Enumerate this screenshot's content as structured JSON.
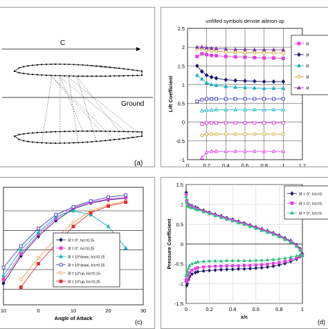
{
  "panel_a": {
    "chord_label": "C",
    "ground_label": "Ground",
    "tag": "(a)"
  },
  "chart_data": [
    {
      "id": "b",
      "type": "line",
      "title": "unfilled symbols denote aileron up",
      "xlabel": "h/c",
      "ylabel": "Lift Coefficient",
      "xlim": [
        0,
        1.2
      ],
      "ylim": [
        -1,
        2.5
      ],
      "xticks": [
        "0",
        "0.2",
        "0.4",
        "0.6",
        "0.8",
        "1",
        "1.2"
      ],
      "yticks": [
        "-1",
        "-0.5",
        "0",
        "0.5",
        "1",
        "1.5",
        "2",
        "2.5"
      ],
      "grid": true,
      "legend_position": "right",
      "tag": "(b)",
      "series": [
        {
          "name": "δf",
          "color": "#e040e0",
          "marker": "square",
          "filled": true,
          "x": [
            0.1,
            0.15,
            0.2,
            0.25,
            0.3,
            0.4,
            0.5,
            0.6,
            0.7,
            0.8,
            0.9,
            1.0
          ],
          "y": [
            1.75,
            1.82,
            1.8,
            1.78,
            1.77,
            1.75,
            1.74,
            1.73,
            1.72,
            1.71,
            1.71,
            1.7
          ]
        },
        {
          "name": "δf",
          "color": "#1a1a70",
          "marker": "diamond",
          "filled": true,
          "x": [
            0.1,
            0.15,
            0.2,
            0.25,
            0.3,
            0.4,
            0.5,
            0.6,
            0.7,
            0.8,
            0.9,
            1.0
          ],
          "y": [
            1.5,
            1.35,
            1.25,
            1.2,
            1.17,
            1.13,
            1.11,
            1.1,
            1.09,
            1.08,
            1.08,
            1.08
          ]
        },
        {
          "name": "δf",
          "color": "#1ab0c0",
          "marker": "triangle",
          "filled": true,
          "x": [
            0.1,
            0.15,
            0.2,
            0.25,
            0.3,
            0.4,
            0.5,
            0.6,
            0.7,
            0.8,
            0.9,
            1.0
          ],
          "y": [
            1.25,
            1.15,
            1.05,
            1.0,
            0.98,
            0.95,
            0.93,
            0.92,
            0.91,
            0.9,
            0.9,
            0.9
          ]
        },
        {
          "name": "δf",
          "color": "#d0a020",
          "marker": "circle",
          "filled": false,
          "x": [
            0.1,
            0.15,
            0.2,
            0.25,
            0.3,
            0.4,
            0.5,
            0.6,
            0.7,
            0.8,
            0.9,
            1.0
          ],
          "y": [
            1.95,
            1.95,
            1.92,
            1.9,
            1.89,
            1.87,
            1.86,
            1.85,
            1.85,
            1.85,
            1.84,
            1.84
          ]
        },
        {
          "name": "δf",
          "color": "#8040a0",
          "marker": "triangle",
          "filled": true,
          "x": [
            0.1,
            0.15,
            0.2,
            0.25,
            0.3,
            0.4,
            0.5,
            0.6,
            0.7,
            0.8,
            0.9,
            1.0
          ],
          "y": [
            2.0,
            2.0,
            1.98,
            1.97,
            1.96,
            1.95,
            1.94,
            1.94,
            1.93,
            1.93,
            1.93,
            1.93
          ]
        },
        {
          "name": "",
          "color": "#4040c0",
          "marker": "square",
          "filled": false,
          "x": [
            0.1,
            0.15,
            0.2,
            0.25,
            0.3,
            0.4,
            0.5,
            0.6,
            0.7,
            0.8,
            0.9,
            1.0
          ],
          "y": [
            0.55,
            0.6,
            0.62,
            0.62,
            0.62,
            0.62,
            0.62,
            0.62,
            0.62,
            0.62,
            0.62,
            0.62
          ]
        },
        {
          "name": "",
          "color": "#1ab0c0",
          "marker": "triangle",
          "filled": false,
          "x": [
            0.15,
            0.2,
            0.25,
            0.3,
            0.4,
            0.5,
            0.6,
            0.7,
            0.8,
            0.9,
            1.0
          ],
          "y": [
            0.3,
            0.32,
            0.32,
            0.33,
            0.33,
            0.33,
            0.33,
            0.33,
            0.33,
            0.33,
            0.33
          ]
        },
        {
          "name": "",
          "color": "#e040e0",
          "marker": "square",
          "filled": false,
          "x": [
            0.15,
            0.2,
            0.25,
            0.3,
            0.4,
            0.5,
            0.6,
            0.7,
            0.8,
            0.9,
            1.0
          ],
          "y": [
            -0.05,
            -0.02,
            -0.02,
            -0.02,
            -0.02,
            -0.02,
            -0.02,
            -0.02,
            -0.02,
            -0.02,
            -0.02
          ]
        },
        {
          "name": "",
          "color": "#d0a020",
          "marker": "circle",
          "filled": false,
          "x": [
            0.15,
            0.2,
            0.25,
            0.3,
            0.4,
            0.5,
            0.6,
            0.7,
            0.8,
            0.9,
            1.0
          ],
          "y": [
            -0.35,
            -0.32,
            -0.32,
            -0.32,
            -0.32,
            -0.32,
            -0.32,
            -0.32,
            -0.32,
            -0.32,
            -0.32
          ]
        },
        {
          "name": "",
          "color": "#e040e0",
          "marker": "triangle",
          "filled": false,
          "x": [
            0.15,
            0.2,
            0.25,
            0.3,
            0.4,
            0.5,
            0.6,
            0.7,
            0.8,
            0.9,
            1.0
          ],
          "y": [
            -0.95,
            -0.8,
            -0.78,
            -0.78,
            -0.78,
            -0.78,
            -0.78,
            -0.78,
            -0.78,
            -0.78,
            -0.78
          ]
        }
      ]
    },
    {
      "id": "c",
      "type": "line",
      "xlabel": "Angle of Attack",
      "ylabel": "",
      "xlim": [
        -10,
        30
      ],
      "xticks": [
        "10",
        "0",
        "10",
        "20",
        "30"
      ],
      "ylim": [
        -0.4,
        2.6
      ],
      "grid": true,
      "legend_position": "bottom-right",
      "tag": "(c)",
      "series": [
        {
          "name": "δf = 0°, h/c=0.15",
          "color": "#1a1a70",
          "marker": "diamond",
          "filled": true,
          "x": [
            -10,
            -5,
            0,
            5,
            10,
            15,
            20,
            25
          ],
          "y": [
            0.15,
            0.85,
            1.35,
            1.75,
            2.05,
            2.2,
            2.28,
            2.32
          ]
        },
        {
          "name": "δf = 0°, h/c=0.25",
          "color": "#e040e0",
          "marker": "square",
          "filled": true,
          "x": [
            -10,
            -5,
            0,
            5,
            10,
            15,
            20,
            25
          ],
          "y": [
            0.25,
            0.9,
            1.4,
            1.8,
            2.08,
            2.22,
            2.3,
            2.34
          ]
        },
        {
          "name": "δf = 10°down, h/c=0.15",
          "color": "#1ab0c0",
          "marker": "triangle",
          "filled": true,
          "x": [
            -10,
            -5,
            0,
            5,
            10,
            15,
            20,
            25
          ],
          "y": [
            0.35,
            1.0,
            1.45,
            1.85,
            2.0,
            1.9,
            1.6,
            1.05
          ]
        },
        {
          "name": "δf = 10°down, h/c=0.25",
          "color": "#4040c0",
          "marker": "square",
          "filled": false,
          "x": [
            -10,
            -5,
            0,
            5,
            10,
            15,
            20,
            25
          ],
          "y": [
            0.55,
            1.1,
            1.55,
            1.9,
            2.1,
            2.25,
            2.35,
            2.4
          ]
        },
        {
          "name": "δf = 10°up, h/c=0.15",
          "color": "#f0a040",
          "marker": "circle",
          "filled": false,
          "x": [
            -5,
            0,
            5,
            10,
            15,
            20,
            25
          ],
          "y": [
            0.25,
            0.8,
            1.3,
            1.7,
            2.0,
            2.15,
            2.25
          ]
        },
        {
          "name": "δf = 10°up, h/c=0.25",
          "color": "#e03030",
          "marker": "square",
          "filled": true,
          "x": [
            -5,
            0,
            5,
            10,
            15,
            20,
            25
          ],
          "y": [
            0.05,
            0.65,
            1.15,
            1.6,
            1.95,
            2.12,
            2.22
          ]
        }
      ]
    },
    {
      "id": "d",
      "type": "line",
      "xlabel": "x/c",
      "ylabel": "Pressure Coefficient",
      "xlim": [
        0,
        1
      ],
      "ylim": [
        -1.5,
        1.5
      ],
      "xticks": [
        "0",
        "0.2",
        "0.4",
        "0.6",
        "0.8",
        "1"
      ],
      "yticks": [
        "-1.5",
        "-1",
        "-0.5",
        "0",
        "0.5",
        "1",
        "1.5"
      ],
      "grid": true,
      "legend_position": "top-right",
      "tag": "(d)",
      "series": [
        {
          "name": "δf = 0°, h/c=0.",
          "color": "#1a1a70",
          "marker": "diamond",
          "filled": true,
          "x": [
            0.0,
            0.005,
            0.01,
            0.02,
            0.03,
            0.05,
            0.08,
            0.1,
            0.15,
            0.2,
            0.25,
            0.3,
            0.35,
            0.4,
            0.45,
            0.5,
            0.55,
            0.6,
            0.65,
            0.7,
            0.75,
            0.8,
            0.85,
            0.9,
            0.95,
            0.98,
            1.0,
            0.98,
            0.95,
            0.9,
            0.85,
            0.8,
            0.75,
            0.7,
            0.65,
            0.6,
            0.55,
            0.5,
            0.45,
            0.4,
            0.35,
            0.3,
            0.25,
            0.2,
            0.15,
            0.1,
            0.08,
            0.05,
            0.03,
            0.02,
            0.01,
            0.005,
            0.0
          ],
          "y": [
            1.3,
            1.1,
            1.02,
            1.0,
            0.98,
            0.96,
            0.93,
            0.9,
            0.85,
            0.8,
            0.75,
            0.71,
            0.66,
            0.62,
            0.57,
            0.53,
            0.48,
            0.43,
            0.38,
            0.33,
            0.28,
            0.22,
            0.15,
            0.08,
            -0.02,
            -0.12,
            -0.25,
            -0.32,
            -0.38,
            -0.44,
            -0.49,
            -0.53,
            -0.56,
            -0.58,
            -0.6,
            -0.61,
            -0.62,
            -0.63,
            -0.63,
            -0.64,
            -0.64,
            -0.65,
            -0.66,
            -0.67,
            -0.68,
            -0.7,
            -0.72,
            -0.76,
            -0.82,
            -0.9,
            -1.0,
            -1.05,
            -0.95
          ]
        },
        {
          "name": "δf = 0°, h/c=0.",
          "color": "#e040e0",
          "marker": "square",
          "filled": true,
          "x": [
            0.0,
            0.005,
            0.01,
            0.02,
            0.03,
            0.05,
            0.08,
            0.1,
            0.15,
            0.2,
            0.25,
            0.3,
            0.35,
            0.4,
            0.45,
            0.5,
            0.55,
            0.6,
            0.65,
            0.7,
            0.75,
            0.8,
            0.85,
            0.9,
            0.95,
            0.98,
            1.0,
            0.98,
            0.95,
            0.9,
            0.85,
            0.8,
            0.75,
            0.7,
            0.65,
            0.6,
            0.55,
            0.5,
            0.45,
            0.4,
            0.35,
            0.3,
            0.25,
            0.2,
            0.15,
            0.1,
            0.08,
            0.05,
            0.03,
            0.02,
            0.01,
            0.005,
            0.0
          ],
          "y": [
            1.25,
            1.08,
            1.0,
            0.98,
            0.96,
            0.94,
            0.91,
            0.88,
            0.83,
            0.78,
            0.73,
            0.69,
            0.64,
            0.6,
            0.55,
            0.51,
            0.46,
            0.41,
            0.36,
            0.31,
            0.26,
            0.2,
            0.13,
            0.06,
            -0.04,
            -0.14,
            -0.28,
            -0.3,
            -0.35,
            -0.4,
            -0.44,
            -0.47,
            -0.49,
            -0.51,
            -0.52,
            -0.53,
            -0.54,
            -0.54,
            -0.55,
            -0.55,
            -0.55,
            -0.56,
            -0.56,
            -0.57,
            -0.58,
            -0.6,
            -0.62,
            -0.66,
            -0.72,
            -0.8,
            -0.9,
            -0.95,
            -0.9
          ]
        },
        {
          "name": "δf = 0°, h/c=0.",
          "color": "#30c080",
          "marker": "triangle",
          "filled": true,
          "x": [
            0.0,
            0.005,
            0.01,
            0.02,
            0.03,
            0.05,
            0.08,
            0.1,
            0.15,
            0.2,
            0.25,
            0.3,
            0.35,
            0.4,
            0.45,
            0.5,
            0.55,
            0.6,
            0.65,
            0.7,
            0.75,
            0.8,
            0.85,
            0.9,
            0.95,
            0.98,
            1.0,
            0.98,
            0.95,
            0.9,
            0.85,
            0.8,
            0.75,
            0.7,
            0.65,
            0.6,
            0.55,
            0.5,
            0.45,
            0.4,
            0.35,
            0.3,
            0.25,
            0.2,
            0.15,
            0.1,
            0.08,
            0.05,
            0.03,
            0.02,
            0.01,
            0.005,
            0.0
          ],
          "y": [
            1.2,
            1.05,
            0.97,
            0.95,
            0.93,
            0.91,
            0.88,
            0.86,
            0.81,
            0.76,
            0.71,
            0.67,
            0.62,
            0.58,
            0.53,
            0.49,
            0.44,
            0.39,
            0.34,
            0.29,
            0.24,
            0.18,
            0.11,
            0.04,
            -0.06,
            -0.16,
            -0.3,
            -0.27,
            -0.3,
            -0.33,
            -0.36,
            -0.38,
            -0.39,
            -0.4,
            -0.41,
            -0.41,
            -0.42,
            -0.42,
            -0.42,
            -0.42,
            -0.42,
            -0.43,
            -0.43,
            -0.43,
            -0.44,
            -0.45,
            -0.47,
            -0.5,
            -0.55,
            -0.62,
            -0.7,
            -0.75,
            -0.8
          ]
        }
      ]
    }
  ]
}
